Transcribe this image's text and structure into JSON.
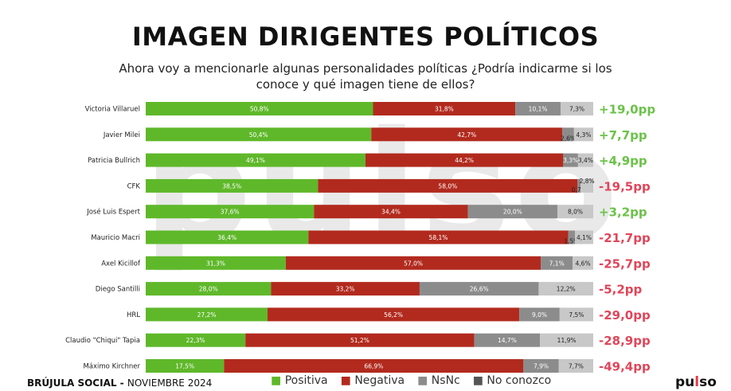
{
  "title": "IMAGEN DIRIGENTES POLÍTICOS",
  "subtitle": "Ahora voy a mencionarle algunas personalidades políticas ¿Podría indicarme si los conoce y qué imagen tiene de ellos?",
  "watermark": "pulso",
  "footer": {
    "bold": "BRÚJULA SOCIAL - ",
    "normal": "NOVIEMBRE 2024"
  },
  "brand": {
    "left": "pu",
    "mid": "l",
    "right": "so"
  },
  "colors": {
    "positiva": "#5fb82a",
    "negativa": "#b22a1e",
    "nsnc": "#8c8c8c",
    "no_conozco": "#c8c8c8",
    "pos_text": "#6cc24a",
    "neg_text": "#e0465a"
  },
  "chart_data": {
    "type": "bar",
    "orientation": "horizontal-stacked-100",
    "categories": [
      "Victoria Villaruel",
      "Javier Milei",
      "Patricia Bullrich",
      "CFK",
      "José Luis Espert",
      "Mauricio Macri",
      "Axel Kicillof",
      "Diego Santilli",
      "HRL",
      "Claudio \"Chiqui\" Tapia",
      "Máximo Kirchner"
    ],
    "series": [
      {
        "name": "Positiva",
        "values": [
          50.8,
          50.4,
          49.1,
          38.5,
          37.6,
          36.4,
          31.3,
          28.0,
          27.2,
          22.3,
          17.5
        ],
        "labels": [
          "50,8%",
          "50,4%",
          "49,1%",
          "38,5%",
          "37,6%",
          "36,4%",
          "31,3%",
          "28,0%",
          "27,2%",
          "22,3%",
          "17,5%"
        ]
      },
      {
        "name": "Negativa",
        "values": [
          31.8,
          42.7,
          44.2,
          58.0,
          34.4,
          58.1,
          57.0,
          33.2,
          56.2,
          51.2,
          66.9
        ],
        "labels": [
          "31,8%",
          "42,7%",
          "44,2%",
          "58,0%",
          "34,4%",
          "58,1%",
          "57,0%",
          "33,2%",
          "56,2%",
          "51,2%",
          "66,9%"
        ]
      },
      {
        "name": "NsNc",
        "values": [
          10.1,
          2.6,
          3.3,
          0.7,
          20.0,
          1.5,
          7.1,
          26.6,
          9.0,
          14.7,
          7.9
        ],
        "labels": [
          "10,1%",
          "2,6%",
          "3,3%",
          "0,7%",
          "20,0%",
          "1,5%",
          "7,1%",
          "26,6%",
          "9,0%",
          "14,7%",
          "7,9%"
        ]
      },
      {
        "name": "No conozco",
        "values": [
          7.3,
          4.3,
          3.4,
          2.8,
          8.0,
          4.1,
          4.6,
          12.2,
          7.5,
          11.9,
          7.7
        ],
        "labels": [
          "7,3%",
          "4,3%",
          "3,4%",
          "2,8%",
          "8,0%",
          "4,1%",
          "4,6%",
          "12,2%",
          "7,5%",
          "11,9%",
          "7,7%"
        ]
      }
    ],
    "net": [
      "+19,0pp",
      "+7,7pp",
      "+4,9pp",
      "-19,5pp",
      "+3,2pp",
      "-21,7pp",
      "-25,7pp",
      "-5,2pp",
      "-29,0pp",
      "-28,9pp",
      "-49,4pp"
    ],
    "legend": [
      "Positiva",
      "Negativa",
      "NsNc",
      "No conozco"
    ],
    "legend_position": "bottom",
    "xlim": [
      0,
      100
    ]
  }
}
